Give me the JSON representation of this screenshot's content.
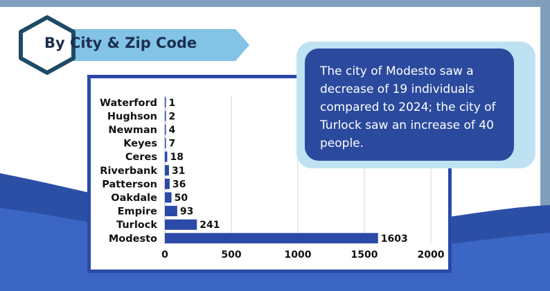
{
  "header": {
    "title": "By City & Zip Code"
  },
  "callout": {
    "text": "The city of Modesto saw a decrease of 19 individuals compared to 2024; the city of Turlock saw an increase of 40 people."
  },
  "colors": {
    "bar": "#2b4aa8",
    "frame": "#2a4aa8",
    "callout": "#2b4a9e",
    "banner": "#82c3e6",
    "hexagon": "#1d4a66"
  },
  "chart_data": {
    "type": "bar",
    "orientation": "horizontal",
    "categories": [
      "Waterford",
      "Hughson",
      "Newman",
      "Keyes",
      "Ceres",
      "Riverbank",
      "Patterson",
      "Oakdale",
      "Empire",
      "Turlock",
      "Modesto"
    ],
    "values": [
      1,
      2,
      4,
      7,
      18,
      31,
      36,
      50,
      93,
      241,
      1603
    ],
    "xlim": [
      0,
      2000
    ],
    "xticks": [
      0,
      500,
      1000,
      1500,
      2000
    ],
    "grid": true,
    "title": "",
    "xlabel": "",
    "ylabel": ""
  }
}
